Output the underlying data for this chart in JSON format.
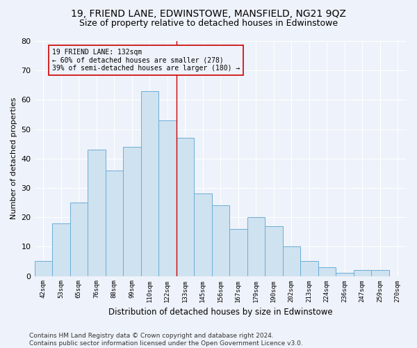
{
  "title": "19, FRIEND LANE, EDWINSTOWE, MANSFIELD, NG21 9QZ",
  "subtitle": "Size of property relative to detached houses in Edwinstowe",
  "xlabel": "Distribution of detached houses by size in Edwinstowe",
  "ylabel": "Number of detached properties",
  "footer_line1": "Contains HM Land Registry data © Crown copyright and database right 2024.",
  "footer_line2": "Contains public sector information licensed under the Open Government Licence v3.0.",
  "categories": [
    "42sqm",
    "53sqm",
    "65sqm",
    "76sqm",
    "88sqm",
    "99sqm",
    "110sqm",
    "122sqm",
    "133sqm",
    "145sqm",
    "156sqm",
    "167sqm",
    "179sqm",
    "190sqm",
    "202sqm",
    "213sqm",
    "224sqm",
    "236sqm",
    "247sqm",
    "259sqm",
    "270sqm"
  ],
  "values": [
    5,
    18,
    25,
    43,
    36,
    44,
    63,
    53,
    47,
    28,
    24,
    16,
    20,
    17,
    10,
    5,
    3,
    1,
    2,
    2,
    0
  ],
  "bar_color_fill": "#cfe2f0",
  "bar_color_edge": "#6aaed6",
  "vline_color": "#cc0000",
  "annotation_text": "19 FRIEND LANE: 132sqm\n← 60% of detached houses are smaller (278)\n39% of semi-detached houses are larger (180) →",
  "annotation_box_color": "#cc0000",
  "ylim": [
    0,
    80
  ],
  "yticks": [
    0,
    10,
    20,
    30,
    40,
    50,
    60,
    70,
    80
  ],
  "background_color": "#eef2fa",
  "grid_color": "#ffffff",
  "title_fontsize": 10,
  "subtitle_fontsize": 9,
  "footer_fontsize": 6.5
}
